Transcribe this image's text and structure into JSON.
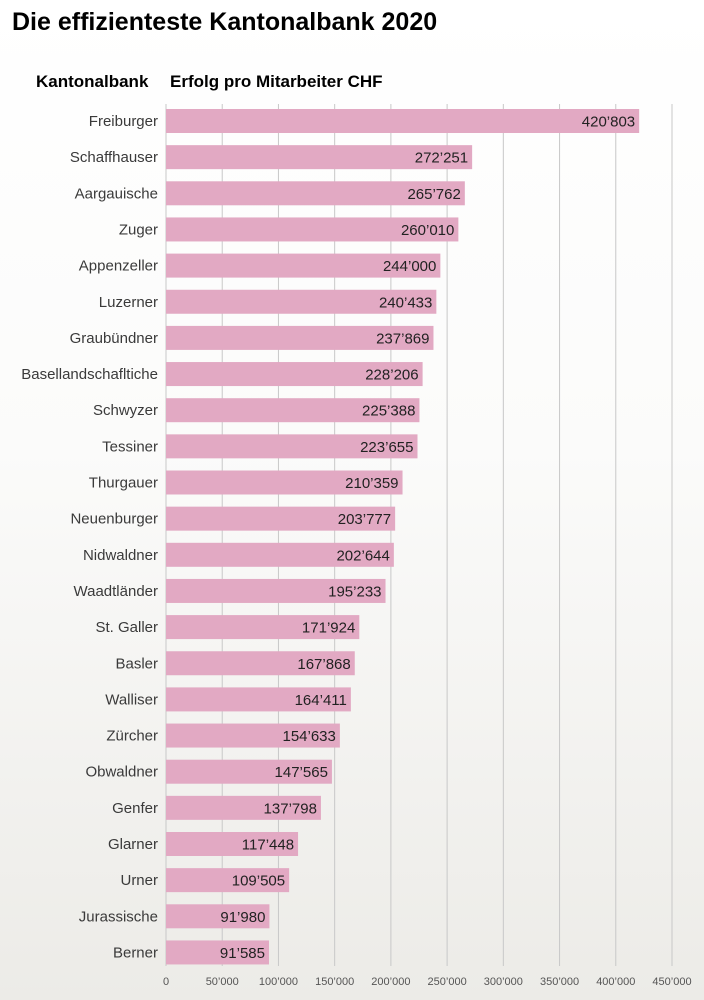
{
  "title": "Die effizienteste Kantonalbank 2020",
  "column_headers": {
    "category": "Kantonalbank",
    "value": "Erfolg pro Mitarbeiter CHF"
  },
  "colors": {
    "bar": "#e2a9c3",
    "grid": "#c8c8c8",
    "label": "#3a3a3a",
    "value_text": "#222222",
    "tick": "#555555"
  },
  "chart_data": {
    "type": "bar",
    "orientation": "horizontal",
    "categories": [
      "Freiburger",
      "Schaffhauser",
      "Aargauische",
      "Zuger",
      "Appenzeller",
      "Luzerner",
      "Graubündner",
      "Basellandschafltiche",
      "Schwyzer",
      "Tessiner",
      "Thurgauer",
      "Neuenburger",
      "Nidwaldner",
      "Waadtländer",
      "St. Galler",
      "Basler",
      "Walliser",
      "Zürcher",
      "Obwaldner",
      "Genfer",
      "Glarner",
      "Urner",
      "Jurassische",
      "Berner"
    ],
    "values": [
      420803,
      272251,
      265762,
      260010,
      244000,
      240433,
      237869,
      228206,
      225388,
      223655,
      210359,
      203777,
      202644,
      195233,
      171924,
      167868,
      164411,
      154633,
      147565,
      137798,
      117448,
      109505,
      91980,
      91585
    ],
    "value_labels": [
      "420’803",
      "272’251",
      "265’762",
      "260’010",
      "244’000",
      "240’433",
      "237’869",
      "228’206",
      "225’388",
      "223’655",
      "210’359",
      "203’777",
      "202’644",
      "195’233",
      "171’924",
      "167’868",
      "164’411",
      "154’633",
      "147’565",
      "137’798",
      "117’448",
      "109’505",
      "91’980",
      "91’585"
    ],
    "xlim": [
      0,
      450000
    ],
    "x_ticks": [
      0,
      50000,
      100000,
      150000,
      200000,
      250000,
      300000,
      350000,
      400000,
      450000
    ],
    "x_tick_labels": [
      "0",
      "50’000",
      "100’000",
      "150’000",
      "200’000",
      "250’000",
      "300’000",
      "350’000",
      "400’000",
      "450’000"
    ],
    "grid": true
  }
}
